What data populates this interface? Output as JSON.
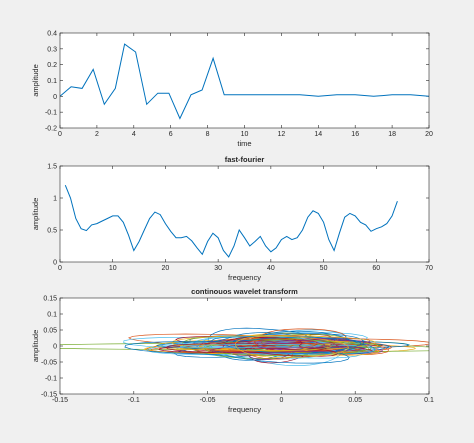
{
  "chart_data": [
    {
      "type": "line",
      "title": "",
      "xlabel": "time",
      "ylabel": "amplitude",
      "xlim": [
        0,
        20
      ],
      "ylim": [
        -0.2,
        0.4
      ],
      "xticks": [
        0,
        2,
        4,
        6,
        8,
        10,
        12,
        14,
        16,
        18,
        20
      ],
      "yticks": [
        -0.2,
        -0.1,
        0,
        0.1,
        0.2,
        0.3,
        0.4
      ],
      "xtick_labels": [
        "0",
        "2",
        "4",
        "6",
        "8",
        "10",
        "12",
        "14",
        "16",
        "18",
        "20"
      ],
      "ytick_labels": [
        "-0.2",
        "-0.1",
        "0",
        "0.1",
        "0.2",
        "0.3",
        "0.4"
      ],
      "grid": false,
      "color": "#0072bd",
      "series": [
        {
          "x": [
            0,
            0.6,
            1.2,
            1.8,
            2.4,
            3.0,
            3.5,
            4.1,
            4.7,
            5.3,
            5.9,
            6.5,
            7.1,
            7.7,
            8.3,
            8.9,
            9.5,
            10,
            11,
            12,
            13,
            14,
            15,
            16,
            17,
            18,
            19,
            20
          ],
          "y": [
            0.0,
            0.06,
            0.05,
            0.17,
            -0.05,
            0.05,
            0.33,
            0.28,
            -0.05,
            0.02,
            0.02,
            -0.14,
            0.01,
            0.04,
            0.24,
            0.01,
            0.01,
            0.01,
            0.01,
            0.01,
            0.01,
            0.0,
            0.01,
            0.01,
            0.0,
            0.01,
            0.01,
            0.0
          ]
        }
      ]
    },
    {
      "type": "line",
      "title": "fast-fourier",
      "xlabel": "frequency",
      "ylabel": "amplitude",
      "xlim": [
        0,
        70
      ],
      "ylim": [
        0,
        1.5
      ],
      "xticks": [
        0,
        10,
        20,
        30,
        40,
        50,
        60,
        70
      ],
      "yticks": [
        0,
        0.5,
        1,
        1.5
      ],
      "xtick_labels": [
        "0",
        "10",
        "20",
        "30",
        "40",
        "50",
        "60",
        "70"
      ],
      "ytick_labels": [
        "0",
        "0.5",
        "1",
        "1.5"
      ],
      "grid": false,
      "color": "#0072bd",
      "series": [
        {
          "x": [
            1,
            2,
            3,
            4,
            5,
            6,
            7,
            8,
            9,
            10,
            11,
            12,
            13,
            14,
            15,
            16,
            17,
            18,
            19,
            20,
            21,
            22,
            23,
            24,
            25,
            26,
            27,
            28,
            29,
            30,
            31,
            32,
            33,
            34,
            35,
            36,
            37,
            38,
            39,
            40,
            41,
            42,
            43,
            44,
            45,
            46,
            47,
            48,
            49,
            50,
            51,
            52,
            53,
            54,
            55,
            56,
            57,
            58,
            59,
            60,
            61,
            62,
            63,
            64
          ],
          "y": [
            1.2,
            1.0,
            0.68,
            0.52,
            0.49,
            0.58,
            0.6,
            0.64,
            0.68,
            0.72,
            0.72,
            0.62,
            0.42,
            0.18,
            0.32,
            0.5,
            0.68,
            0.78,
            0.74,
            0.6,
            0.48,
            0.38,
            0.38,
            0.4,
            0.33,
            0.22,
            0.12,
            0.32,
            0.45,
            0.38,
            0.18,
            0.08,
            0.25,
            0.5,
            0.38,
            0.25,
            0.32,
            0.4,
            0.25,
            0.16,
            0.22,
            0.35,
            0.4,
            0.35,
            0.38,
            0.5,
            0.7,
            0.8,
            0.76,
            0.62,
            0.35,
            0.18,
            0.45,
            0.7,
            0.76,
            0.72,
            0.62,
            0.58,
            0.48,
            0.52,
            0.55,
            0.6,
            0.72,
            0.95
          ]
        }
      ]
    },
    {
      "type": "line",
      "title": "continouos wavelet transform",
      "xlabel": "frequency",
      "ylabel": "amplitude",
      "xlim": [
        -0.15,
        0.1
      ],
      "ylim": [
        -0.15,
        0.15
      ],
      "xticks": [
        -0.15,
        -0.1,
        -0.05,
        0,
        0.05,
        0.1
      ],
      "yticks": [
        -0.15,
        -0.1,
        -0.05,
        0,
        0.05,
        0.1,
        0.15
      ],
      "xtick_labels": [
        "-0.15",
        "-0.1",
        "-0.05",
        "0",
        "0.05",
        "0.1"
      ],
      "ytick_labels": [
        "-0.15",
        "-0.1",
        "-0.05",
        "0",
        "0.05",
        "0.1",
        "0.15"
      ],
      "grid": false,
      "description": "dense tangle of many overlapping colored closed curves centered near the origin",
      "series_colors": [
        "#0072bd",
        "#d95319",
        "#edb120",
        "#7e2f8e",
        "#77ac30",
        "#4dbeee",
        "#a2142f"
      ]
    }
  ]
}
